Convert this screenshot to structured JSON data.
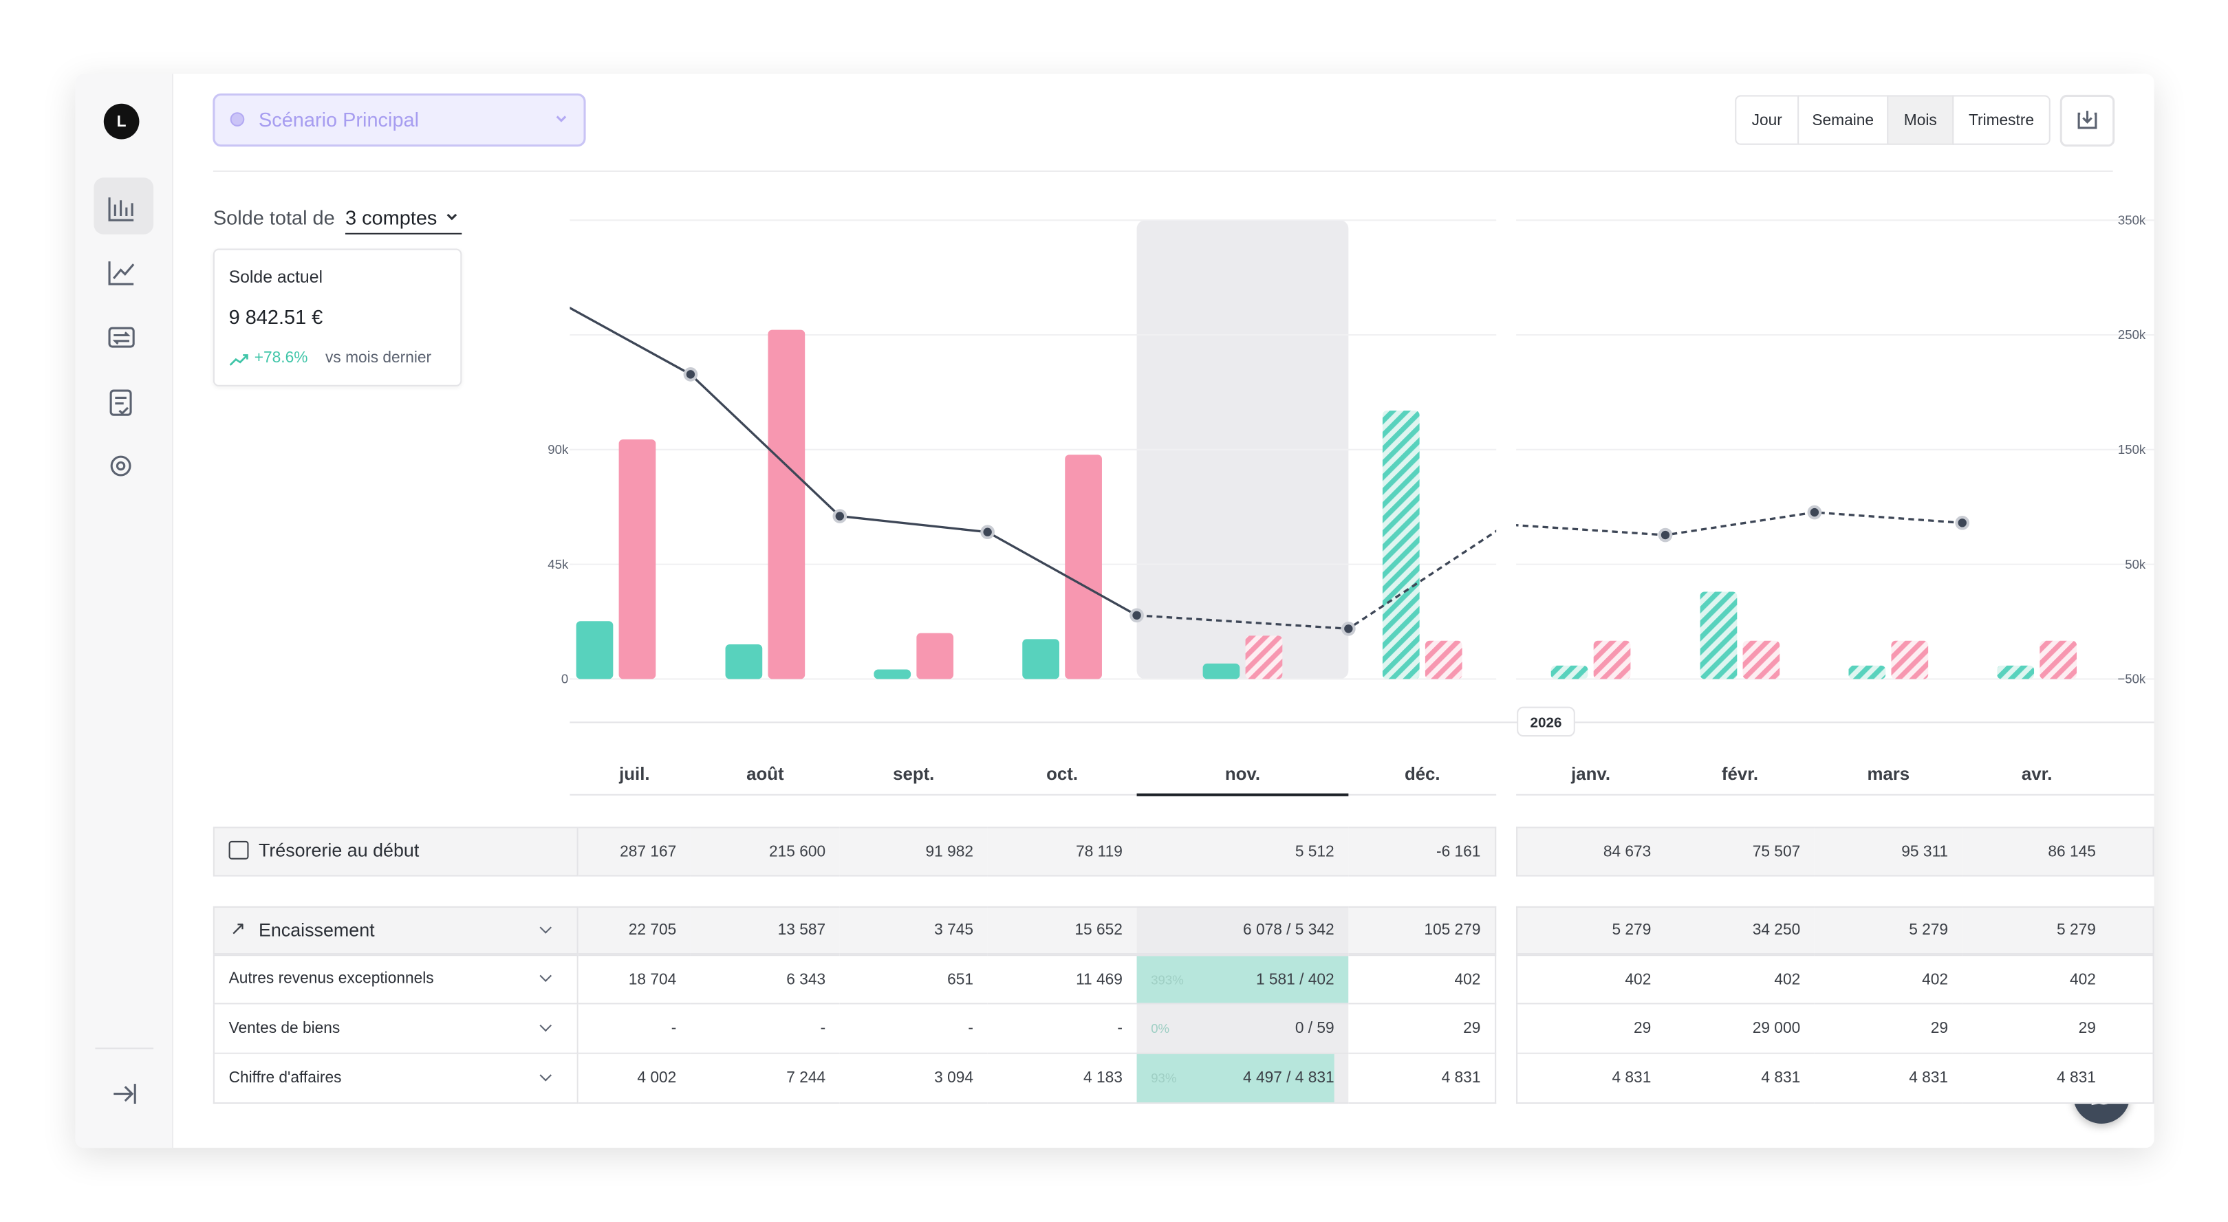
{
  "sidebar": {
    "avatar": "L"
  },
  "header": {
    "scenario": "Scénario Principal",
    "periods": [
      "Jour",
      "Semaine",
      "Mois",
      "Trimestre"
    ],
    "active_period": 2
  },
  "summary": {
    "label": "Solde total de",
    "accounts": "3 comptes",
    "card_title": "Solde actuel",
    "balance": "9 842.51 €",
    "change": "+78.6%",
    "change_note": "vs mois dernier"
  },
  "current_index": 4,
  "chart_data": {
    "type": "bar",
    "categories": [
      "juil.",
      "août",
      "sept.",
      "oct.",
      "nov.",
      "déc.",
      "janv.",
      "févr.",
      "mars",
      "avr."
    ],
    "year_label": "2026",
    "ylim": [
      0,
      180000
    ],
    "yticks": [
      0,
      {
        "value": 45000,
        "label": "45k"
      },
      {
        "value": 90000,
        "label": "90k"
      }
    ],
    "y2lim": [
      -50000,
      350000
    ],
    "y2ticks": [
      {
        "value": -50000,
        "label": "−50k"
      },
      {
        "value": 50000,
        "label": "50k"
      },
      {
        "value": 150000,
        "label": "150k"
      },
      {
        "value": 250000,
        "label": "250k"
      },
      {
        "value": 350000,
        "label": "350k"
      }
    ],
    "grid": true,
    "series": [
      {
        "type": "bar",
        "color": "#58d2bd",
        "hatched_from": 5,
        "values": [
          22705,
          13587,
          3745,
          15652,
          6078,
          105279,
          5279,
          34250,
          5279,
          5279
        ]
      },
      {
        "type": "bar",
        "color": "#f797b0",
        "hatched_from": 4,
        "values": [
          94000,
          137000,
          18000,
          88000,
          17000,
          15000,
          15000,
          15000,
          15000,
          15000
        ]
      },
      {
        "type": "line",
        "axis": "y2",
        "color": "#3d4656",
        "dashed_from": 4,
        "values": [
          287167,
          215600,
          91982,
          78119,
          5512,
          -6161,
          84673,
          75507,
          95311,
          86145
        ]
      }
    ]
  },
  "table": {
    "rows": [
      {
        "label": "Trésorerie au début",
        "kind": "total",
        "cells": [
          "287 167",
          "215 600",
          "91 982",
          "78 119",
          "5 512",
          "-6 161",
          "84 673",
          "75 507",
          "95 311",
          "86 145"
        ]
      },
      {
        "label": "Encaissement",
        "kind": "group",
        "cells": [
          "22 705",
          "13 587",
          "3 745",
          "15 652",
          "6 078 / 5 342",
          "105 279",
          "5 279",
          "34 250",
          "5 279",
          "5 279"
        ]
      },
      {
        "label": "Autres revenus exceptionnels",
        "kind": "item",
        "progress": 393,
        "progress_label": "393%",
        "cells": [
          "18 704",
          "6 343",
          "651",
          "11 469",
          "1 581 / 402",
          "402",
          "402",
          "402",
          "402",
          "402"
        ]
      },
      {
        "label": "Ventes de biens",
        "kind": "item",
        "progress": 0,
        "progress_label": "0%",
        "cells": [
          "-",
          "-",
          "-",
          "-",
          "0 / 59",
          "29",
          "29",
          "29 000",
          "29",
          "29"
        ]
      },
      {
        "label": "Chiffre d'affaires",
        "kind": "item",
        "progress": 93,
        "progress_label": "93%",
        "cells": [
          "4 002",
          "7 244",
          "3 094",
          "4 183",
          "4 497 / 4 831",
          "4 831",
          "4 831",
          "4 831",
          "4 831",
          "4 831"
        ]
      }
    ]
  }
}
